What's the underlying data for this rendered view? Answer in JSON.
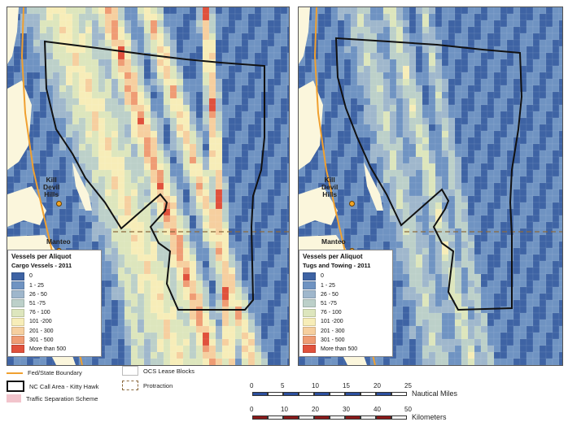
{
  "panels": [
    {
      "legend_title": "Vessels per Aliquot",
      "legend_subtitle": "Cargo Vessels - 2011",
      "places": [
        {
          "name": "Kill\nDevil\nHills"
        },
        {
          "name": "Manteo"
        }
      ]
    },
    {
      "legend_title": "Vessels per Aliquot",
      "legend_subtitle": "Tugs and Towing - 2011",
      "places": [
        {
          "name": "Kill\nDevil\nHills"
        },
        {
          "name": "Manteo"
        }
      ]
    }
  ],
  "density_classes": [
    {
      "label": "0",
      "color": "#3e63a4"
    },
    {
      "label": "1 - 25",
      "color": "#6f93c2"
    },
    {
      "label": "26 - 50",
      "color": "#9fb7cc"
    },
    {
      "label": "51 -75",
      "color": "#bcd0c9"
    },
    {
      "label": "76 - 100",
      "color": "#dde6bd"
    },
    {
      "label": "101 -200",
      "color": "#f7edb8"
    },
    {
      "label": "201 - 300",
      "color": "#f6cf9f"
    },
    {
      "label": "301 - 500",
      "color": "#ef9c74"
    },
    {
      "label": "More than 500",
      "color": "#e0513c"
    }
  ],
  "map_legend": {
    "fed_state_boundary": "Fed/State Boundary",
    "ocs_lease_blocks": "OCS Lease Blocks",
    "call_area": "NC Call Area - Kitty Hawk",
    "protraction": "Protraction",
    "traffic_separation": "Traffic Separation Scheme"
  },
  "colors": {
    "ocean": "#4a73b0",
    "land": "#fbf6dc",
    "fed_state_line": "#f0a030",
    "call_area_outline": "#111111",
    "protraction": "#8b6a3e",
    "scale_nm": "#2b4f9e",
    "scale_km": "#8b1a1a"
  },
  "scale_bars": {
    "nautical": {
      "ticks": [
        "0",
        "5",
        "10",
        "15",
        "20",
        "25"
      ],
      "unit": "Nautical Miles"
    },
    "km": {
      "ticks": [
        "0",
        "10",
        "20",
        "30",
        "40",
        "50"
      ],
      "unit": "Kilometers"
    }
  }
}
